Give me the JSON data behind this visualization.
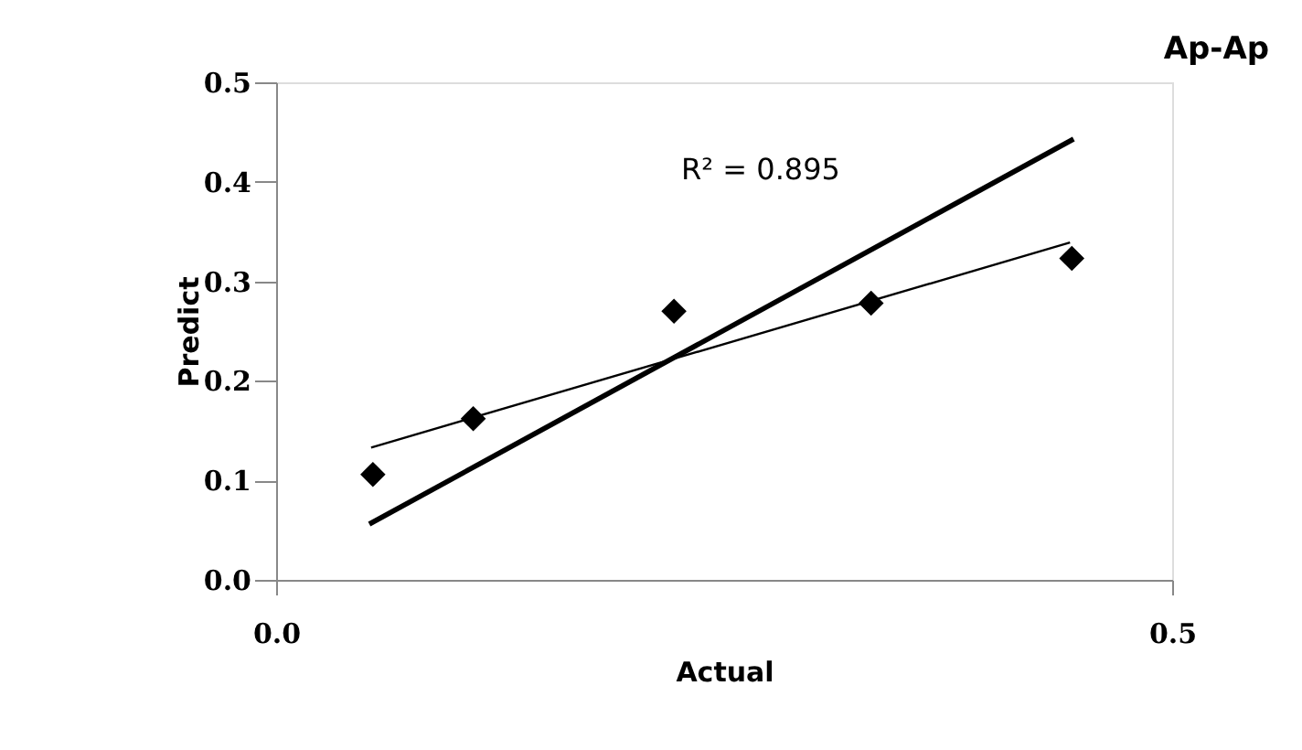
{
  "chart_data": {
    "type": "scatter",
    "title": "Ap-Ap",
    "xlabel": "Actual",
    "ylabel": "Predict",
    "x": [
      0.054,
      0.11,
      0.222,
      0.332,
      0.444
    ],
    "series": [
      {
        "color": "#000000",
        "marker": "diamond",
        "values": [
          0.106,
          0.162,
          0.27,
          0.278,
          0.323
        ]
      },
      {
        "type": "line",
        "color": "#000000",
        "x": [
          0.053,
          0.443
        ],
        "values": [
          0.133,
          0.339
        ],
        "line_style": "solid"
      },
      {
        "type": "line",
        "color": "#000000",
        "x": [
          0.052,
          0.445
        ],
        "values": [
          0.056,
          0.443
        ],
        "line_style": "solid"
      }
    ],
    "annotations": [
      "R² = 0.895"
    ],
    "xlim": [
      0,
      0.5
    ],
    "ylim": [
      0,
      0.5
    ],
    "xticks": [
      {
        "value": 0,
        "label": "0.0"
      },
      {
        "value": 0.5,
        "label": "0.5"
      }
    ],
    "yticks": [
      {
        "value": 0,
        "label": "0.0"
      },
      0.1,
      0.2,
      0.3,
      0.4,
      0.5
    ],
    "grid": false,
    "legend": false
  }
}
